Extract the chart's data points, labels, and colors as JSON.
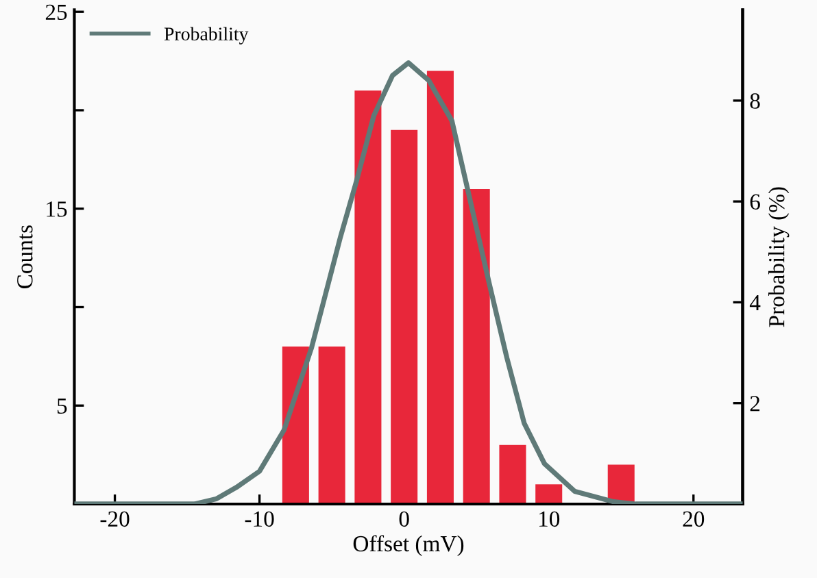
{
  "chart_data": {
    "type": "bar",
    "xlabel": "Offset (mV)",
    "ylabel": "Counts",
    "y2label": "Probability (%)",
    "x": [
      -7.5,
      -5,
      -2.5,
      0,
      2.5,
      5,
      7.5,
      10,
      15
    ],
    "series": [
      {
        "color": "#e8273a",
        "values": [
          8,
          8,
          21,
          19,
          22,
          16,
          3,
          1,
          2
        ]
      },
      {
        "type": "line",
        "name": "Probability",
        "color": "#5f7a78",
        "axis": "y2",
        "x": [
          -22.8,
          -14.5,
          -13,
          -11.6,
          -10,
          -8.3,
          -6.4,
          -4.4,
          -3.3,
          -2.1,
          -0.8,
          0.3,
          1.7,
          3.3,
          4.3,
          5.9,
          7.1,
          8.3,
          9.7,
          11.8,
          14.4,
          16,
          23.4
        ],
        "values": [
          0,
          0,
          0.1,
          0.33,
          0.65,
          1.47,
          3.1,
          5.3,
          6.4,
          7.7,
          8.5,
          8.75,
          8.4,
          7.6,
          6.35,
          4.35,
          2.9,
          1.6,
          0.8,
          0.25,
          0.05,
          0,
          0
        ]
      }
    ],
    "xlim": [
      -22.8,
      23.4
    ],
    "xticks": [
      -20,
      -10,
      0,
      10,
      20
    ],
    "ylim": [
      0,
      25.1
    ],
    "yticks": [
      5,
      {
        "value": 10,
        "label": null
      },
      15,
      {
        "value": 20,
        "label": null
      },
      25
    ],
    "y2lim": [
      0,
      9.8
    ],
    "y2ticks": [
      2,
      4,
      6,
      8
    ],
    "grid": false,
    "legend": "top left"
  }
}
